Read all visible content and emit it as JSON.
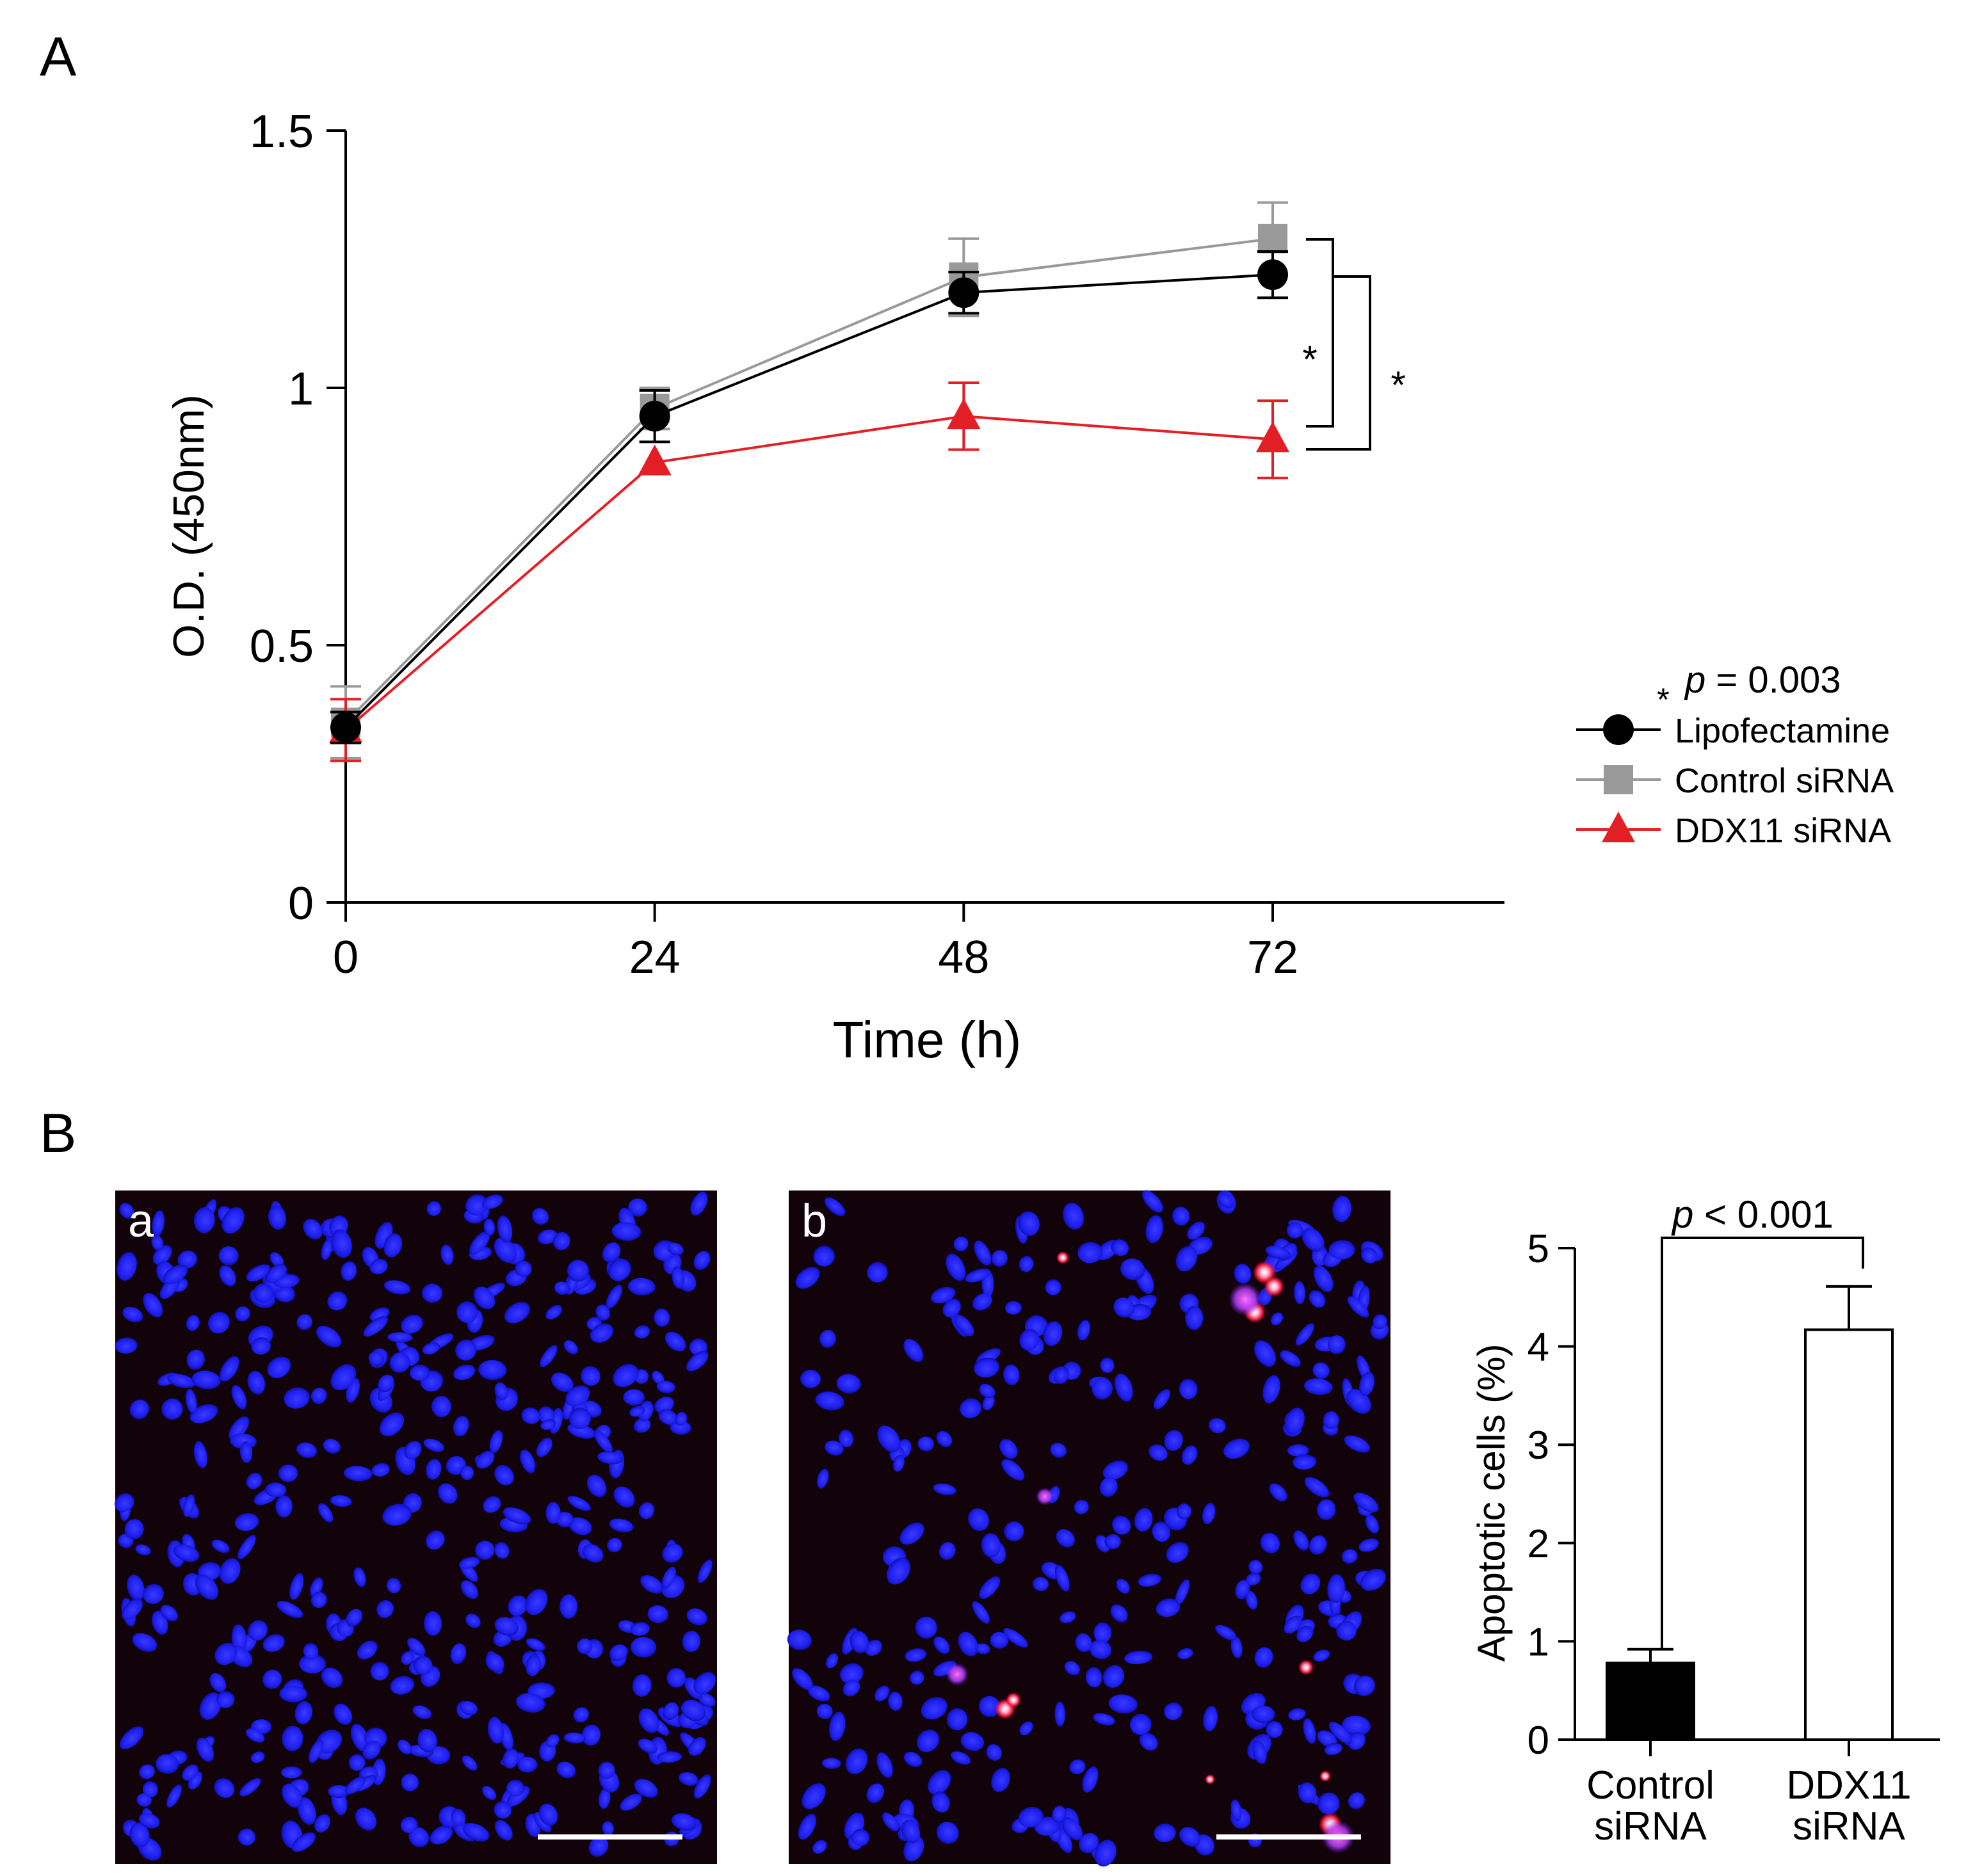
{
  "panels": {
    "a_label": "A",
    "b_label": "B"
  },
  "chart_data": [
    {
      "type": "line",
      "panel": "A",
      "xlabel": "Time (h)",
      "ylabel": "O.D. (450nm)",
      "x": [
        0,
        24,
        48,
        72
      ],
      "x_ticks": [
        "0",
        "24",
        "48",
        "72"
      ],
      "y_ticks": [
        "0",
        "0.5",
        "1",
        "1.5"
      ],
      "xlim": [
        0,
        90
      ],
      "ylim": [
        0,
        1.5
      ],
      "series": [
        {
          "name": "Lipofectamine",
          "color": "#000000",
          "marker": "circle",
          "values": [
            0.34,
            0.945,
            1.185,
            1.22
          ],
          "errors": [
            0.03,
            0.05,
            0.04,
            0.045
          ]
        },
        {
          "name": "Control siRNA",
          "color": "#999999",
          "marker": "square",
          "values": [
            0.35,
            0.96,
            1.215,
            1.29
          ],
          "errors": [
            0.07,
            0.04,
            0.075,
            0.07
          ]
        },
        {
          "name": "DDX11 siRNA",
          "color": "#e31e24",
          "marker": "triangle",
          "values": [
            0.335,
            0.855,
            0.945,
            0.9
          ],
          "errors": [
            0.06,
            0.0,
            0.065,
            0.075
          ]
        }
      ],
      "annotations": {
        "star_inner": "*",
        "star_outer": "*",
        "legend_star": "*",
        "legend_p": "p",
        "legend_value": " = 0.003"
      }
    },
    {
      "type": "bar",
      "panel": "B",
      "categories": [
        "Control siRNA",
        "DDX11 siRNA"
      ],
      "category_lines": [
        [
          "Control",
          "siRNA"
        ],
        [
          "DDX11",
          "siRNA"
        ]
      ],
      "values": [
        0.78,
        4.17
      ],
      "errors": [
        0.14,
        0.44
      ],
      "colors": [
        "#000000",
        "#ffffff"
      ],
      "ylabel": "Apoptotic cells (%)",
      "ylim": [
        0,
        5
      ],
      "y_ticks": [
        "0",
        "1",
        "2",
        "3",
        "4",
        "5"
      ],
      "annotations": {
        "p": "p",
        "p_value": " < 0.001"
      }
    }
  ],
  "micrographs": {
    "a_label": "a",
    "b_label": "b"
  }
}
